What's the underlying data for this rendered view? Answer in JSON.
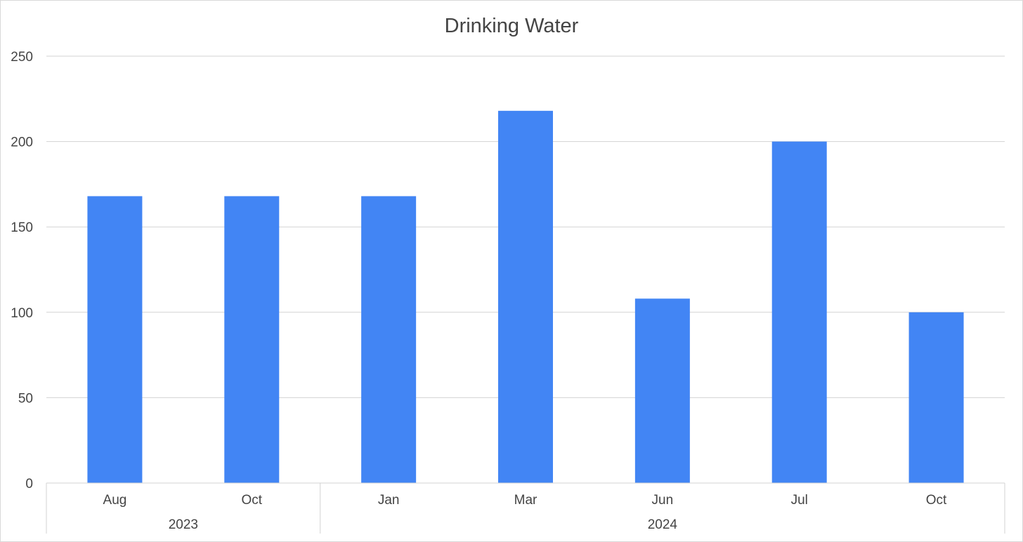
{
  "chart_data": {
    "type": "bar",
    "title": "Drinking Water",
    "xlabel": "",
    "ylabel": "",
    "ylim": [
      0,
      250
    ],
    "y_ticks": [
      0,
      50,
      100,
      150,
      200,
      250
    ],
    "grid": true,
    "legend": "none",
    "categories": [
      "Aug",
      "Oct",
      "Jan",
      "Mar",
      "Jun",
      "Jul",
      "Oct"
    ],
    "category_groups": [
      {
        "label": "2023",
        "count": 2
      },
      {
        "label": "2024",
        "count": 5
      }
    ],
    "series": [
      {
        "name": "Drinking Water",
        "color": "#4285f4",
        "values": [
          168,
          168,
          168,
          218,
          108,
          200,
          100
        ]
      }
    ]
  }
}
